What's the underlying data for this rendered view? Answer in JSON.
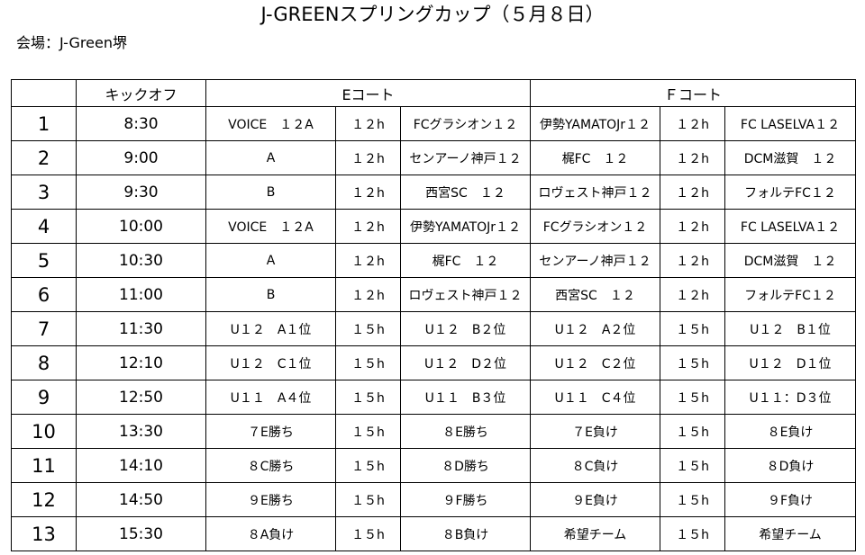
{
  "title": "J-GREENスプリングカップ（５月８日）",
  "venue": "会場：J-Green堺",
  "header": {
    "blank": "",
    "kickoff": "キックオフ",
    "court_e": "Eコート",
    "court_f": "Ｆコート"
  },
  "rows": [
    {
      "no": "1",
      "time": "8:30",
      "e_team1": "VOICE　１２A",
      "e_cat": "１２h",
      "e_team2": "FCグラシオン１２",
      "f_team1": "伊勢YAMATOJr１２",
      "f_cat": "１２h",
      "f_team2": "FC LASELVA１２"
    },
    {
      "no": "2",
      "time": "9:00",
      "e_team1": "A",
      "e_cat": "１２h",
      "e_team2": "センアーノ神戸１２",
      "f_team1": "梶FC　１２",
      "f_cat": "１２h",
      "f_team2": "DCM滋賀　１２"
    },
    {
      "no": "3",
      "time": "9:30",
      "e_team1": "B",
      "e_cat": "１２h",
      "e_team2": "西宮SC　１２",
      "f_team1": "ロヴェスト神戸１２",
      "f_cat": "１２h",
      "f_team2": "フォルテFC１２"
    },
    {
      "no": "4",
      "time": "10:00",
      "e_team1": "VOICE　１２A",
      "e_cat": "１２h",
      "e_team2": "伊勢YAMATOJr１２",
      "f_team1": "FCグラシオン１２",
      "f_cat": "１２h",
      "f_team2": "FC LASELVA１２"
    },
    {
      "no": "5",
      "time": "10:30",
      "e_team1": "A",
      "e_cat": "１２h",
      "e_team2": "梶FC　１２",
      "f_team1": "センアーノ神戸１２",
      "f_cat": "１２h",
      "f_team2": "DCM滋賀　１２"
    },
    {
      "no": "6",
      "time": "11:00",
      "e_team1": "B",
      "e_cat": "１２h",
      "e_team2": "ロヴェスト神戸１２",
      "f_team1": "西宮SC　１２",
      "f_cat": "１２h",
      "f_team2": "フォルテFC１２"
    },
    {
      "no": "7",
      "time": "11:30",
      "e_team1": "U１２　A１位",
      "e_cat": "１５h",
      "e_team2": "U１２　B２位",
      "f_team1": "U１２　A２位",
      "f_cat": "１５h",
      "f_team2": "U１２　B１位"
    },
    {
      "no": "8",
      "time": "12:10",
      "e_team1": "U１２　C１位",
      "e_cat": "１５h",
      "e_team2": "U１２　D２位",
      "f_team1": "U１２　C２位",
      "f_cat": "１５h",
      "f_team2": "U１２　D１位"
    },
    {
      "no": "9",
      "time": "12:50",
      "e_team1": "U１１　A４位",
      "e_cat": "１５h",
      "e_team2": "U１１　B３位",
      "f_team1": "U１１　C４位",
      "f_cat": "１５h",
      "f_team2": "U１１：D３位"
    },
    {
      "no": "10",
      "time": "13:30",
      "e_team1": "７E勝ち",
      "e_cat": "１５h",
      "e_team2": "８E勝ち",
      "f_team1": "７E負け",
      "f_cat": "１５h",
      "f_team2": "８E負け"
    },
    {
      "no": "11",
      "time": "14:10",
      "e_team1": "８C勝ち",
      "e_cat": "１５h",
      "e_team2": "８D勝ち",
      "f_team1": "８C負け",
      "f_cat": "１５h",
      "f_team2": "８D負け"
    },
    {
      "no": "12",
      "time": "14:50",
      "e_team1": "９E勝ち",
      "e_cat": "１５h",
      "e_team2": "９F勝ち",
      "f_team1": "９E負け",
      "f_cat": "１５h",
      "f_team2": "９F負け"
    },
    {
      "no": "13",
      "time": "15:30",
      "e_team1": "８A負け",
      "e_cat": "１５h",
      "e_team2": "８B負け",
      "f_team1": "希望チーム",
      "f_cat": "１５h",
      "f_team2": "希望チーム"
    }
  ]
}
